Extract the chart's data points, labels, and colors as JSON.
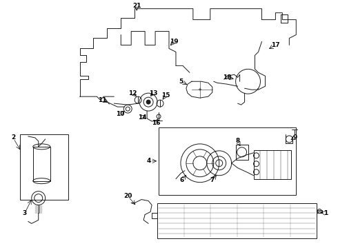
{
  "bg_color": "#ffffff",
  "line_color": "#1a1a1a",
  "fig_width": 4.9,
  "fig_height": 3.6,
  "dpi": 100,
  "font_size": 6.5,
  "lw": 0.7
}
